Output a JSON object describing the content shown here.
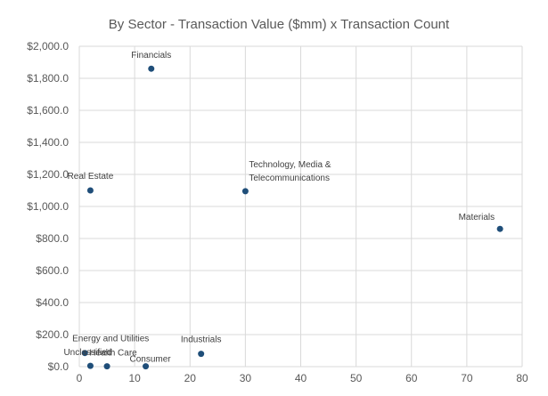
{
  "chart_data": {
    "type": "scatter",
    "title": "By Sector - Transaction Value ($mm) x Transaction Count",
    "xlabel": "",
    "ylabel": "",
    "xlim": [
      0,
      80
    ],
    "ylim": [
      0,
      2000
    ],
    "grid": true,
    "legend": "none",
    "x_ticks": [
      0,
      10,
      20,
      30,
      40,
      50,
      60,
      70,
      80
    ],
    "y_ticks": [
      0,
      200,
      400,
      600,
      800,
      1000,
      1200,
      1400,
      1600,
      1800,
      2000
    ],
    "y_tick_labels": [
      "$0.0",
      "$200.0",
      "$400.0",
      "$600.0",
      "$800.0",
      "$1,000.0",
      "$1,200.0",
      "$1,400.0",
      "$1,600.0",
      "$1,800.0",
      "$2,000.0"
    ],
    "point_color": "#1f4e79",
    "points": [
      {
        "label": "Financials",
        "x": 13,
        "y": 1860
      },
      {
        "label": "Technology, Media & Telecommunications",
        "label_lines": [
          "Technology, Media &",
          "Telecommunications"
        ],
        "x": 30,
        "y": 1095
      },
      {
        "label": "Real Estate",
        "x": 2,
        "y": 1100
      },
      {
        "label": "Materials",
        "x": 76,
        "y": 860
      },
      {
        "label": "Energy and Utilities",
        "x": 1,
        "y": 85
      },
      {
        "label": "Industrials",
        "x": 22,
        "y": 80
      },
      {
        "label": "Unclassified",
        "x": 2,
        "y": 5
      },
      {
        "label": "Health Care",
        "x": 5,
        "y": 2
      },
      {
        "label": "Consumer",
        "x": 12,
        "y": 2
      }
    ]
  }
}
